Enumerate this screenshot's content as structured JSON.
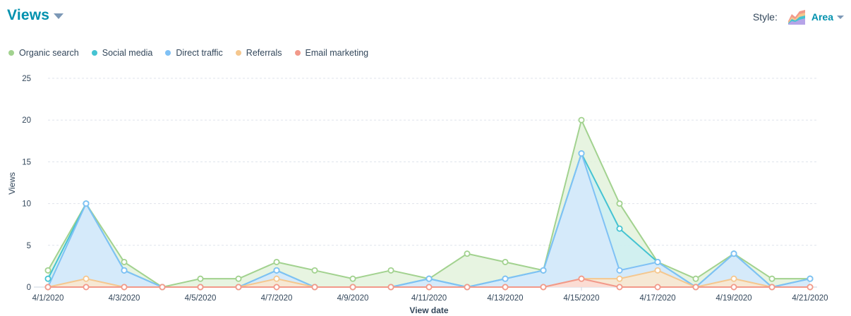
{
  "header": {
    "title": "Views"
  },
  "style_control": {
    "label": "Style:",
    "value": "Area",
    "icon": "area-chart-icon"
  },
  "chart_data": {
    "type": "area",
    "xlabel": "View date",
    "ylabel": "Views",
    "ylim": [
      0,
      25
    ],
    "yticks": [
      0,
      5,
      10,
      15,
      20,
      25
    ],
    "grid": true,
    "legend_position": "top-left",
    "x": [
      "4/1/2020",
      "4/2/2020",
      "4/3/2020",
      "4/4/2020",
      "4/5/2020",
      "4/6/2020",
      "4/7/2020",
      "4/8/2020",
      "4/9/2020",
      "4/10/2020",
      "4/11/2020",
      "4/12/2020",
      "4/13/2020",
      "4/14/2020",
      "4/15/2020",
      "4/16/2020",
      "4/17/2020",
      "4/18/2020",
      "4/19/2020",
      "4/20/2020",
      "4/21/2020"
    ],
    "xtick_labels": [
      "4/1/2020",
      "",
      "4/3/2020",
      "",
      "4/5/2020",
      "",
      "4/7/2020",
      "",
      "4/9/2020",
      "",
      "4/11/2020",
      "",
      "4/13/2020",
      "",
      "4/15/2020",
      "",
      "4/17/2020",
      "",
      "4/19/2020",
      "",
      "4/21/2020"
    ],
    "series": [
      {
        "name": "Organic search",
        "color": "#a2d28f",
        "fill": "#e3f2dc",
        "values": [
          2,
          10,
          3,
          0,
          1,
          1,
          3,
          2,
          1,
          2,
          1,
          4,
          3,
          2,
          20,
          10,
          3,
          1,
          4,
          1,
          1
        ]
      },
      {
        "name": "Social media",
        "color": "#45c3d2",
        "fill": "#cdeef2",
        "values": [
          1,
          10,
          2,
          0,
          0,
          0,
          2,
          0,
          0,
          0,
          1,
          0,
          1,
          2,
          16,
          7,
          3,
          0,
          4,
          0,
          1
        ]
      },
      {
        "name": "Direct traffic",
        "color": "#7fc1f5",
        "fill": "#d6e9fb",
        "values": [
          0,
          10,
          2,
          0,
          0,
          0,
          2,
          0,
          0,
          0,
          1,
          0,
          1,
          2,
          16,
          2,
          3,
          0,
          4,
          0,
          1
        ]
      },
      {
        "name": "Referrals",
        "color": "#f5c78e",
        "fill": "#fbe7cc",
        "values": [
          0,
          1,
          0,
          0,
          0,
          0,
          1,
          0,
          0,
          0,
          0,
          0,
          0,
          0,
          1,
          1,
          2,
          0,
          1,
          0,
          0
        ]
      },
      {
        "name": "Email marketing",
        "color": "#f2998a",
        "fill": "#fbd9d2",
        "values": [
          0,
          0,
          0,
          0,
          0,
          0,
          0,
          0,
          0,
          0,
          0,
          0,
          0,
          0,
          1,
          0,
          0,
          0,
          0,
          0,
          0
        ]
      }
    ]
  }
}
